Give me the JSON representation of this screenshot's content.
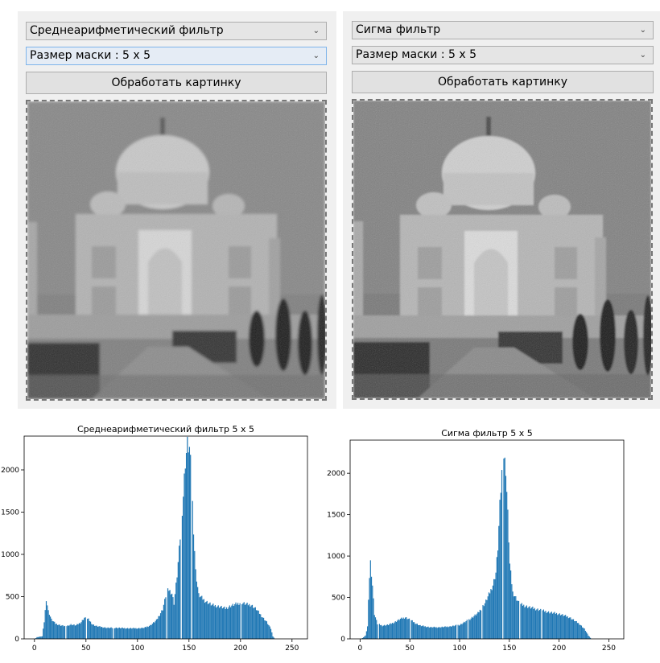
{
  "left": {
    "filter_select": "Среднеарифметический фильтр",
    "mask_select": "Размер маски : 5 x 5",
    "process_button": "Обработать картинку"
  },
  "right": {
    "filter_select": "Сигма фильтр",
    "mask_select": "Размер маски : 5 x 5",
    "process_button": "Обработать картинку"
  },
  "chart_data": [
    {
      "type": "bar",
      "title": "Среднеарифметический фильтр 5 x 5",
      "xlim": [
        -10,
        265
      ],
      "ylim": [
        0,
        2400
      ],
      "xticks": [
        0,
        50,
        100,
        150,
        200,
        250
      ],
      "yticks": [
        0,
        500,
        1000,
        1500,
        2000
      ],
      "color": "#1f77b4",
      "gaps": [
        30,
        50,
        76,
        128,
        142,
        152,
        200
      ],
      "profile": [
        [
          0,
          0
        ],
        [
          2,
          20
        ],
        [
          7,
          30
        ],
        [
          9,
          200
        ],
        [
          11,
          470
        ],
        [
          13,
          330
        ],
        [
          16,
          230
        ],
        [
          20,
          180
        ],
        [
          25,
          160
        ],
        [
          30,
          150
        ],
        [
          35,
          170
        ],
        [
          40,
          160
        ],
        [
          45,
          200
        ],
        [
          48,
          250
        ],
        [
          52,
          230
        ],
        [
          56,
          170
        ],
        [
          60,
          150
        ],
        [
          70,
          130
        ],
        [
          80,
          130
        ],
        [
          90,
          125
        ],
        [
          100,
          125
        ],
        [
          106,
          130
        ],
        [
          112,
          160
        ],
        [
          118,
          220
        ],
        [
          124,
          350
        ],
        [
          128,
          560
        ],
        [
          130,
          580
        ],
        [
          133,
          540
        ],
        [
          135,
          420
        ],
        [
          138,
          750
        ],
        [
          141,
          1200
        ],
        [
          144,
          1700
        ],
        [
          146,
          2100
        ],
        [
          148,
          2300
        ],
        [
          150,
          2250
        ],
        [
          152,
          1900
        ],
        [
          154,
          1300
        ],
        [
          156,
          800
        ],
        [
          159,
          520
        ],
        [
          165,
          450
        ],
        [
          172,
          400
        ],
        [
          180,
          380
        ],
        [
          185,
          360
        ],
        [
          190,
          390
        ],
        [
          195,
          410
        ],
        [
          200,
          430
        ],
        [
          205,
          410
        ],
        [
          210,
          400
        ],
        [
          215,
          350
        ],
        [
          220,
          270
        ],
        [
          225,
          200
        ],
        [
          229,
          120
        ],
        [
          231,
          30
        ],
        [
          233,
          0
        ]
      ]
    },
    {
      "type": "bar",
      "title": "Сигма фильтр 5 x 5",
      "xlim": [
        -10,
        265
      ],
      "ylim": [
        0,
        2400
      ],
      "xticks": [
        0,
        50,
        100,
        150,
        200,
        250
      ],
      "yticks": [
        0,
        500,
        1000,
        1500,
        2000
      ],
      "color": "#1f77b4",
      "gaps": [
        18,
        50,
        97,
        108,
        122,
        143,
        160,
        182
      ],
      "profile": [
        [
          0,
          0
        ],
        [
          2,
          10
        ],
        [
          5,
          40
        ],
        [
          7,
          150
        ],
        [
          9,
          750
        ],
        [
          10,
          930
        ],
        [
          12,
          650
        ],
        [
          14,
          300
        ],
        [
          17,
          180
        ],
        [
          22,
          160
        ],
        [
          28,
          170
        ],
        [
          34,
          200
        ],
        [
          40,
          240
        ],
        [
          45,
          260
        ],
        [
          50,
          230
        ],
        [
          55,
          190
        ],
        [
          60,
          160
        ],
        [
          70,
          140
        ],
        [
          80,
          140
        ],
        [
          90,
          150
        ],
        [
          100,
          170
        ],
        [
          110,
          240
        ],
        [
          118,
          310
        ],
        [
          125,
          430
        ],
        [
          130,
          560
        ],
        [
          133,
          650
        ],
        [
          136,
          800
        ],
        [
          138,
          1100
        ],
        [
          140,
          1600
        ],
        [
          142,
          2000
        ],
        [
          144,
          2200
        ],
        [
          146,
          2050
        ],
        [
          148,
          1500
        ],
        [
          150,
          900
        ],
        [
          153,
          560
        ],
        [
          160,
          420
        ],
        [
          170,
          380
        ],
        [
          180,
          350
        ],
        [
          190,
          320
        ],
        [
          200,
          300
        ],
        [
          210,
          260
        ],
        [
          220,
          180
        ],
        [
          225,
          120
        ],
        [
          229,
          40
        ],
        [
          232,
          0
        ]
      ]
    }
  ]
}
